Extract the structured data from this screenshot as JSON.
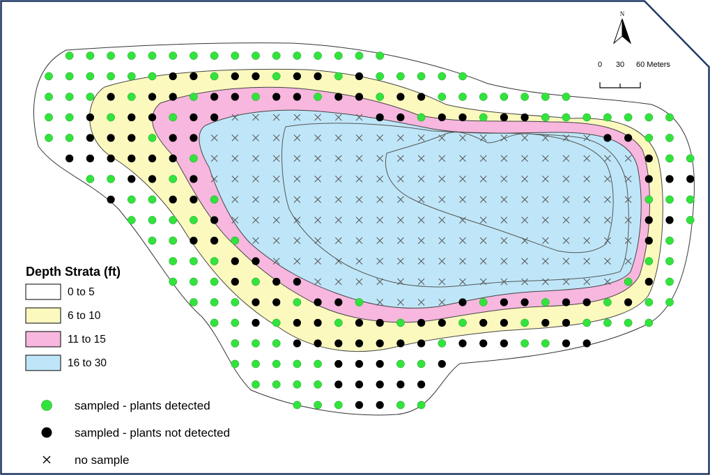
{
  "north_arrow": {
    "label": "N"
  },
  "scale_bar": {
    "ticks": [
      "0",
      "30",
      "60 Meters"
    ]
  },
  "legend": {
    "title": "Depth Strata (ft)",
    "strata": [
      {
        "label": "0 to 5",
        "color": "#ffffff"
      },
      {
        "label": "6 to 10",
        "color": "#fcf9bf"
      },
      {
        "label": "11 to 15",
        "color": "#f7b7de"
      },
      {
        "label": "16 to 30",
        "color": "#bfe6f8"
      }
    ],
    "symbols": [
      {
        "label": "sampled - plants detected",
        "symbol": "green-dot",
        "color": "#33e33d"
      },
      {
        "label": "sampled - plants not detected",
        "symbol": "black-dot",
        "color": "#000000"
      },
      {
        "label": "no sample",
        "symbol": "x-mark",
        "color": "#000000"
      }
    ]
  },
  "colors": {
    "border": "#1f3864",
    "green": "#33e33d",
    "black": "#000000",
    "contour": "#555555"
  }
}
